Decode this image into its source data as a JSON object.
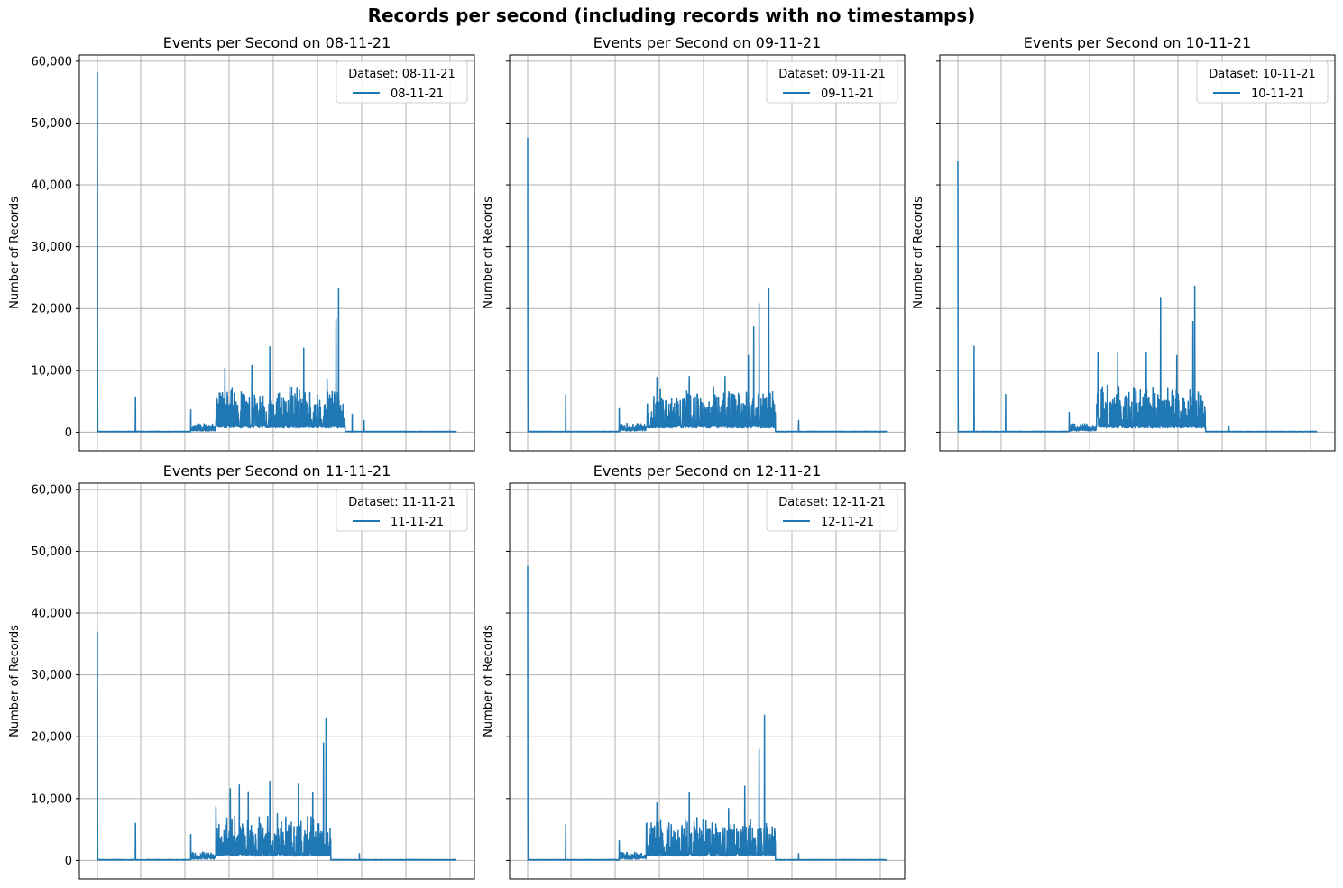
{
  "figure": {
    "suptitle": "Records per second (including records with no timestamps)"
  },
  "chart_data": [
    {
      "type": "line",
      "title": "Events per Second on 08-11-21",
      "xlabel": "",
      "ylabel": "Number of Records",
      "ylim": [
        -3000,
        61000
      ],
      "yticks": [
        0,
        10000,
        20000,
        30000,
        40000,
        50000,
        60000
      ],
      "ytick_labels": [
        "0",
        "10,000",
        "20,000",
        "30,000",
        "40,000",
        "50,000",
        "60,000"
      ],
      "x_tick_labels_visible": false,
      "grid": true,
      "legend": {
        "title": "Dataset: 08-11-21",
        "position": "top-right"
      },
      "series": [
        {
          "name": "08-11-21",
          "color": "#1f77b4",
          "spikes": [
            [
              0.0,
              58200
            ],
            [
              0.106,
              5700
            ],
            [
              0.26,
              3600
            ],
            [
              0.355,
              10400
            ],
            [
              0.43,
              10800
            ],
            [
              0.48,
              13800
            ],
            [
              0.575,
              13600
            ],
            [
              0.64,
              8600
            ],
            [
              0.665,
              18300
            ],
            [
              0.672,
              23200
            ],
            [
              0.71,
              2900
            ],
            [
              0.743,
              1900
            ]
          ],
          "bands": [
            [
              0.26,
              0.33,
              1300
            ],
            [
              0.33,
              0.69,
              6500
            ]
          ]
        }
      ]
    },
    {
      "type": "line",
      "title": "Events per Second on 09-11-21",
      "xlabel": "",
      "ylabel": "Number of Records",
      "ylim": [
        -3000,
        61000
      ],
      "yticks": [
        0,
        10000,
        20000,
        30000,
        40000,
        50000,
        60000
      ],
      "ytick_labels": [
        "0",
        "10,000",
        "20,000",
        "30,000",
        "40,000",
        "50,000",
        "60,000"
      ],
      "x_tick_labels_visible": false,
      "grid": true,
      "legend": {
        "title": "Dataset: 09-11-21",
        "position": "top-right"
      },
      "series": [
        {
          "name": "09-11-21",
          "color": "#1f77b4",
          "spikes": [
            [
              0.0,
              47600
            ],
            [
              0.106,
              6100
            ],
            [
              0.255,
              3800
            ],
            [
              0.36,
              8800
            ],
            [
              0.45,
              9000
            ],
            [
              0.55,
              9000
            ],
            [
              0.615,
              12400
            ],
            [
              0.63,
              17000
            ],
            [
              0.645,
              20800
            ],
            [
              0.672,
              23200
            ],
            [
              0.69,
              3200
            ],
            [
              0.755,
              1900
            ]
          ],
          "bands": [
            [
              0.255,
              0.33,
              1300
            ],
            [
              0.33,
              0.69,
              6300
            ]
          ]
        }
      ]
    },
    {
      "type": "line",
      "title": "Events per Second on 10-11-21",
      "xlabel": "",
      "ylabel": "Number of Records",
      "ylim": [
        -3000,
        61000
      ],
      "yticks": [
        0,
        10000,
        20000,
        30000,
        40000,
        50000,
        60000
      ],
      "ytick_labels": [
        "0",
        "10,000",
        "20,000",
        "30,000",
        "40,000",
        "50,000",
        "60,000"
      ],
      "x_tick_labels_visible": false,
      "grid": true,
      "legend": {
        "title": "Dataset: 10-11-21",
        "position": "top-right"
      },
      "series": [
        {
          "name": "10-11-21",
          "color": "#1f77b4",
          "spikes": [
            [
              0.0,
              43800
            ],
            [
              0.045,
              13900
            ],
            [
              0.133,
              6100
            ],
            [
              0.31,
              3200
            ],
            [
              0.39,
              12800
            ],
            [
              0.445,
              12800
            ],
            [
              0.525,
              12800
            ],
            [
              0.565,
              21800
            ],
            [
              0.61,
              12400
            ],
            [
              0.655,
              17900
            ],
            [
              0.66,
              23600
            ],
            [
              0.685,
              3000
            ],
            [
              0.755,
              1000
            ]
          ],
          "bands": [
            [
              0.31,
              0.385,
              1300
            ],
            [
              0.385,
              0.69,
              6800
            ]
          ]
        }
      ]
    },
    {
      "type": "line",
      "title": "Events per Second on 11-11-21",
      "xlabel": "",
      "ylabel": "Number of Records",
      "ylim": [
        -3000,
        61000
      ],
      "yticks": [
        0,
        10000,
        20000,
        30000,
        40000,
        50000,
        60000
      ],
      "ytick_labels": [
        "0",
        "10,000",
        "20,000",
        "30,000",
        "40,000",
        "50,000",
        "60,000"
      ],
      "x_tick_labels_visible": false,
      "grid": true,
      "legend": {
        "title": "Dataset: 11-11-21",
        "position": "top-right"
      },
      "series": [
        {
          "name": "11-11-21",
          "color": "#1f77b4",
          "spikes": [
            [
              0.0,
              37000
            ],
            [
              0.106,
              6000
            ],
            [
              0.26,
              4200
            ],
            [
              0.33,
              8700
            ],
            [
              0.37,
              11600
            ],
            [
              0.395,
              12200
            ],
            [
              0.42,
              11100
            ],
            [
              0.48,
              12800
            ],
            [
              0.56,
              12300
            ],
            [
              0.6,
              11000
            ],
            [
              0.63,
              19000
            ],
            [
              0.637,
              23000
            ],
            [
              0.65,
              3400
            ],
            [
              0.73,
              1100
            ]
          ],
          "bands": [
            [
              0.26,
              0.33,
              1400
            ],
            [
              0.33,
              0.65,
              6500
            ]
          ]
        }
      ]
    },
    {
      "type": "line",
      "title": "Events per Second on 12-11-21",
      "xlabel": "",
      "ylabel": "Number of Records",
      "ylim": [
        -3000,
        61000
      ],
      "yticks": [
        0,
        10000,
        20000,
        30000,
        40000,
        50000,
        60000
      ],
      "ytick_labels": [
        "0",
        "10,000",
        "20,000",
        "30,000",
        "40,000",
        "50,000",
        "60,000"
      ],
      "x_tick_labels_visible": false,
      "grid": true,
      "legend": {
        "title": "Dataset: 12-11-21",
        "position": "top-right"
      },
      "series": [
        {
          "name": "12-11-21",
          "color": "#1f77b4",
          "spikes": [
            [
              0.0,
              47600
            ],
            [
              0.106,
              5800
            ],
            [
              0.255,
              3200
            ],
            [
              0.36,
              9300
            ],
            [
              0.45,
              10900
            ],
            [
              0.56,
              8400
            ],
            [
              0.605,
              12000
            ],
            [
              0.645,
              18000
            ],
            [
              0.66,
              23500
            ],
            [
              0.69,
              3100
            ],
            [
              0.755,
              1100
            ]
          ],
          "bands": [
            [
              0.255,
              0.33,
              1300
            ],
            [
              0.33,
              0.69,
              6200
            ]
          ]
        }
      ]
    }
  ]
}
